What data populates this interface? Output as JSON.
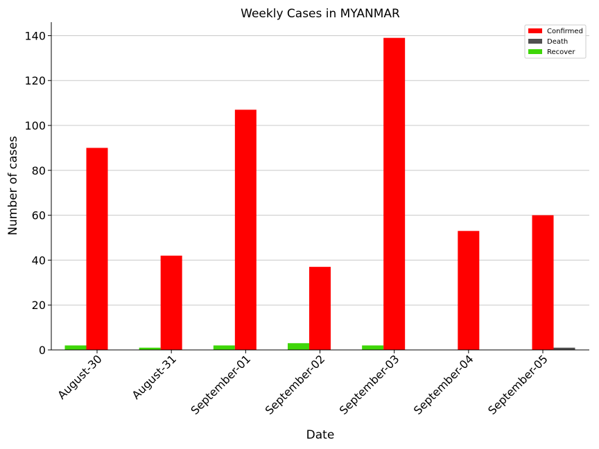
{
  "chart_data": {
    "type": "bar",
    "title": "Weekly Cases in MYANMAR",
    "xlabel": "Date",
    "ylabel": "Number of cases",
    "categories": [
      "August-30",
      "August-31",
      "September-01",
      "September-02",
      "September-03",
      "September-04",
      "September-05"
    ],
    "series": [
      {
        "name": "Recover",
        "color": "#3fd609",
        "values": [
          2,
          1,
          2,
          3,
          2,
          0,
          0
        ]
      },
      {
        "name": "Confirmed",
        "color": "#ff0000",
        "values": [
          90,
          42,
          107,
          37,
          139,
          53,
          60
        ]
      },
      {
        "name": "Death",
        "color": "#505050",
        "values": [
          0,
          0,
          0,
          0,
          0,
          0,
          1
        ]
      }
    ],
    "legend_order": [
      "Confirmed",
      "Death",
      "Recover"
    ],
    "ylim": [
      0,
      146
    ],
    "yticks": [
      0,
      20,
      40,
      60,
      80,
      100,
      120,
      140
    ],
    "grid": "horizontal",
    "legend_position": "top-right"
  }
}
